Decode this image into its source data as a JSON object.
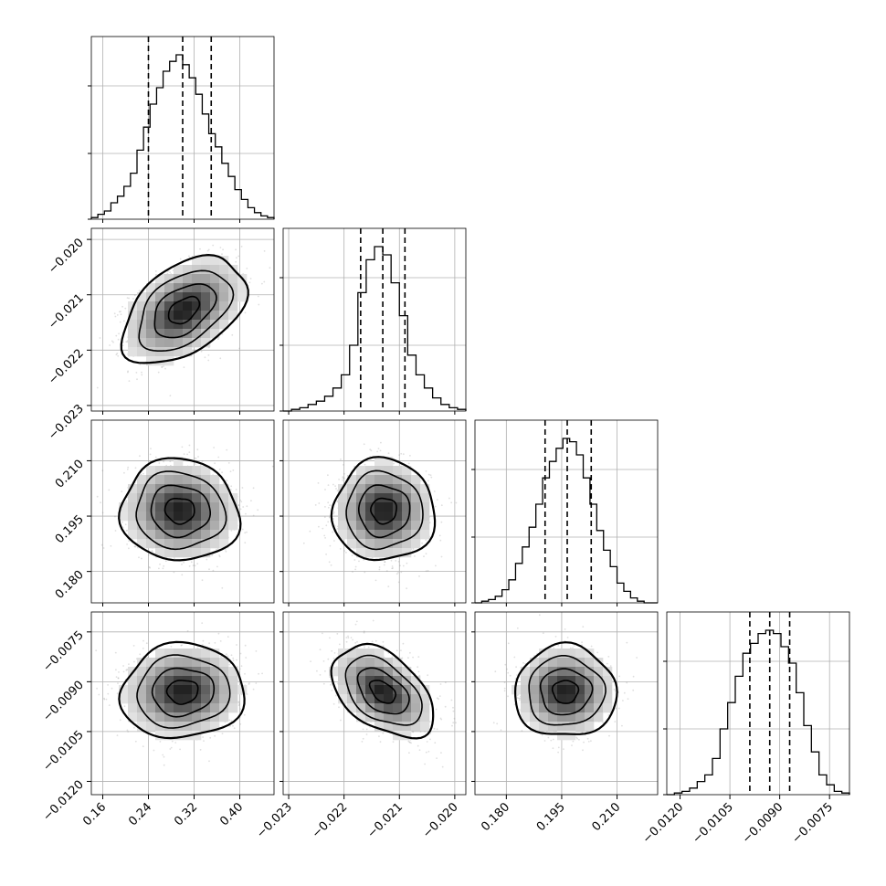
{
  "chart_data": {
    "type": "corner",
    "params": 4,
    "grid": true,
    "colors": {
      "line": "#000000",
      "grid": "#b0b0b0",
      "scatter": "#8c8c8c"
    },
    "parameters": [
      {
        "mean": 0.3,
        "quantiles": [
          0.24,
          0.3,
          0.35
        ],
        "range": [
          0.14,
          0.46
        ],
        "ticks": [
          0.16,
          0.24,
          0.32,
          0.4
        ],
        "tick_labels": [
          "0.16",
          "0.24",
          "0.32",
          "0.40"
        ],
        "hist": [
          0.01,
          0.03,
          0.05,
          0.1,
          0.14,
          0.2,
          0.28,
          0.42,
          0.56,
          0.7,
          0.8,
          0.9,
          0.96,
          1.0,
          0.94,
          0.86,
          0.76,
          0.64,
          0.52,
          0.44,
          0.34,
          0.26,
          0.18,
          0.12,
          0.07,
          0.04,
          0.02,
          0.01
        ]
      },
      {
        "mean": -0.0213,
        "quantiles": [
          -0.0217,
          -0.0213,
          -0.0209
        ],
        "range": [
          -0.0231,
          -0.0198
        ],
        "ticks": [
          -0.023,
          -0.022,
          -0.021,
          -0.02
        ],
        "tick_labels": [
          "−0.023",
          "−0.022",
          "−0.021",
          "−0.020"
        ],
        "hist": [
          0.0,
          0.01,
          0.02,
          0.04,
          0.06,
          0.09,
          0.14,
          0.22,
          0.4,
          0.72,
          0.92,
          1.0,
          0.95,
          0.78,
          0.58,
          0.34,
          0.22,
          0.14,
          0.08,
          0.04,
          0.02,
          0.01
        ]
      },
      {
        "mean": 0.1965,
        "quantiles": [
          0.1905,
          0.1965,
          0.203
        ],
        "range": [
          0.1715,
          0.221
        ],
        "ticks": [
          0.18,
          0.195,
          0.21
        ],
        "tick_labels": [
          "0.180",
          "0.195",
          "0.210"
        ],
        "hist": [
          0.0,
          0.01,
          0.02,
          0.04,
          0.08,
          0.14,
          0.24,
          0.34,
          0.46,
          0.6,
          0.76,
          0.86,
          0.94,
          1.0,
          0.98,
          0.9,
          0.76,
          0.6,
          0.44,
          0.32,
          0.22,
          0.12,
          0.07,
          0.03,
          0.01,
          0.0,
          0.0
        ]
      },
      {
        "mean": -0.0093,
        "quantiles": [
          -0.0099,
          -0.0093,
          -0.0087
        ],
        "range": [
          -0.0124,
          -0.0069
        ],
        "ticks": [
          -0.012,
          -0.0105,
          -0.009,
          -0.0075
        ],
        "tick_labels": [
          "−0.0120",
          "−0.0105",
          "−0.0090",
          "−0.0075"
        ],
        "hist": [
          0.0,
          0.01,
          0.02,
          0.04,
          0.08,
          0.12,
          0.22,
          0.4,
          0.56,
          0.72,
          0.86,
          0.92,
          0.98,
          1.0,
          0.98,
          0.9,
          0.8,
          0.62,
          0.42,
          0.26,
          0.12,
          0.06,
          0.02,
          0.01
        ]
      }
    ],
    "pairs": [
      {
        "i": 1,
        "j": 0,
        "cx": 0.302,
        "cy": -0.02128,
        "sx": 0.047,
        "sy": 0.00042,
        "rho": 0.45
      },
      {
        "i": 2,
        "j": 0,
        "cx": 0.295,
        "cy": 0.1965,
        "sx": 0.045,
        "sy": 0.006,
        "rho": -0.05
      },
      {
        "i": 2,
        "j": 1,
        "cx": -0.02128,
        "cy": 0.1965,
        "sx": 0.0004,
        "sy": 0.006,
        "rho": 0.0
      },
      {
        "i": 3,
        "j": 0,
        "cx": 0.3,
        "cy": -0.0093,
        "sx": 0.047,
        "sy": 0.00062,
        "rho": 0.05
      },
      {
        "i": 3,
        "j": 1,
        "cx": -0.0213,
        "cy": -0.0093,
        "sx": 0.0004,
        "sy": 0.0006,
        "rho": -0.45
      },
      {
        "i": 3,
        "j": 2,
        "cx": 0.196,
        "cy": -0.0093,
        "sx": 0.006,
        "sy": 0.0006,
        "rho": 0.0
      }
    ]
  }
}
